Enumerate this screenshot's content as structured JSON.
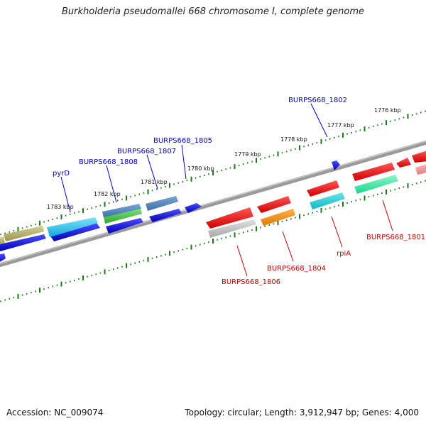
{
  "title": "Burkholderia pseudomallei 668 chromosome I, complete genome",
  "footer": {
    "accession": "Accession: NC_009074",
    "summary": "Topology: circular; Length: 3,912,947 bp; Genes: 4,000"
  },
  "kbp_labels": [
    "1776 kbp",
    "1777 kbp",
    "1778 kbp",
    "1779 kbp",
    "1780 kbp",
    "1781 kbp",
    "1782 kbp",
    "1783 kbp"
  ],
  "gene_labels_top": [
    "BURPS668_1802",
    "BURPS668_1805",
    "BURPS668_1807",
    "BURPS668_1808",
    "pyrD"
  ],
  "gene_labels_bottom": [
    "BURPS668_1801",
    "rpiA",
    "BURPS668_1804",
    "BURPS668_1806"
  ],
  "colors": {
    "forward_label": "#0000cc",
    "reverse_label": "#cc0000",
    "tick": "#1a7a1a",
    "backbone": "#808080"
  }
}
